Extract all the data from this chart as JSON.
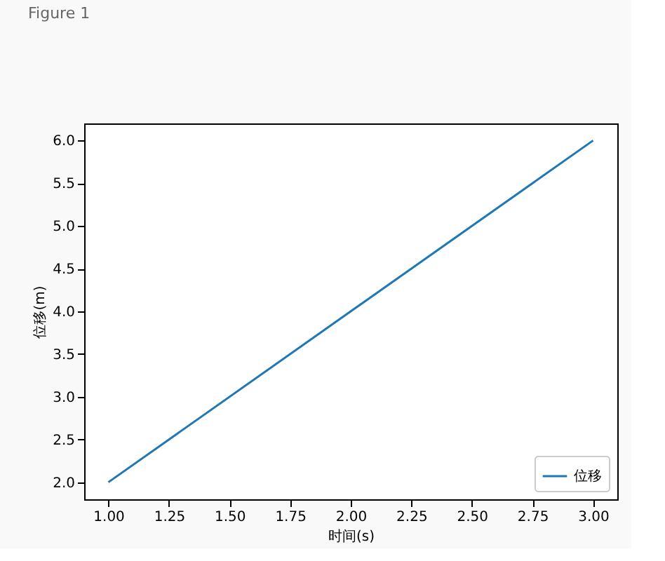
{
  "chart_data": {
    "type": "line",
    "annotations": [
      "Figure 1"
    ],
    "xlabel": "时间(s)",
    "ylabel": "位移(m)",
    "x": [
      1.0,
      3.0
    ],
    "series": [
      {
        "name": "位移",
        "color": "#1f77b4",
        "values": [
          2.0,
          6.0
        ]
      }
    ],
    "xlim": [
      0.9,
      3.1
    ],
    "ylim": [
      1.8,
      6.2
    ],
    "xticks": [
      {
        "value": 1.0,
        "label": "1.00"
      },
      1.25,
      {
        "value": 1.5,
        "label": "1.50"
      },
      1.75,
      {
        "value": 2.0,
        "label": "2.00"
      },
      2.25,
      {
        "value": 2.5,
        "label": "2.50"
      },
      2.75,
      {
        "value": 3.0,
        "label": "3.00"
      }
    ],
    "yticks": [
      {
        "value": 2.0,
        "label": "2.0"
      },
      2.5,
      {
        "value": 3.0,
        "label": "3.0"
      },
      3.5,
      {
        "value": 4.0,
        "label": "4.0"
      },
      4.5,
      {
        "value": 5.0,
        "label": "5.0"
      },
      5.5,
      {
        "value": 6.0,
        "label": "6.0"
      }
    ],
    "grid": false,
    "legend": "bottom right",
    "line_style": "solid",
    "marker": "none"
  }
}
